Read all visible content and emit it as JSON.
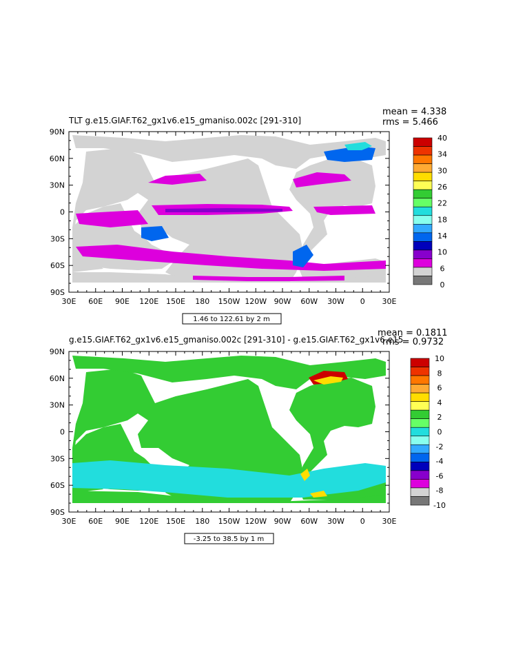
{
  "colors": {
    "land": "#ffffff",
    "ocean_gray": "#d3d3d3",
    "frame": "#000000"
  },
  "panels": [
    {
      "id": "top",
      "title": "TLT g.e15.GIAF.T62_gx1v6.e15_gmaniso.002c [291-310]",
      "mean_text": "mean = 4.338",
      "rms_text": "rms = 5.466",
      "range_text": "1.46 to 122.61 by 2 m",
      "y_ticks": [
        "90N",
        "60N",
        "30N",
        "0",
        "30S",
        "60S",
        "90S"
      ],
      "x_ticks": [
        "30E",
        "60E",
        "90E",
        "120E",
        "150E",
        "180",
        "150W",
        "120W",
        "90W",
        "60W",
        "30W",
        "0",
        "30E"
      ],
      "colorbar": {
        "labels": [
          "40",
          "34",
          "30",
          "26",
          "22",
          "18",
          "14",
          "10",
          "6",
          "0"
        ],
        "colors": [
          "#cc0000",
          "#ee3300",
          "#ff7700",
          "#ffaa33",
          "#ffdd00",
          "#ffff55",
          "#33cc33",
          "#66ff66",
          "#22dddd",
          "#88ffee",
          "#33aaff",
          "#0066ee",
          "#0000bb",
          "#8800cc",
          "#dd00dd",
          "#d3d3d3",
          "#777777"
        ]
      }
    },
    {
      "id": "bottom",
      "title": "g.e15.GIAF.T62_gx1v6.e15_gmaniso.002c [291-310] - g.e15.GIAF.T62_gx1v6.e15",
      "mean_text": "mean = 0.1811",
      "rms_text": "rms = 0.9732",
      "range_text": "-3.25 to 38.5 by 1 m",
      "y_ticks": [
        "90N",
        "60N",
        "30N",
        "0",
        "30S",
        "60S",
        "90S"
      ],
      "x_ticks": [
        "30E",
        "60E",
        "90E",
        "120E",
        "150E",
        "180",
        "150W",
        "120W",
        "90W",
        "60W",
        "30W",
        "0",
        "30E"
      ],
      "colorbar": {
        "labels": [
          "10",
          "8",
          "6",
          "4",
          "2",
          "0",
          "-2",
          "-4",
          "-6",
          "-8",
          "-10"
        ],
        "colors": [
          "#cc0000",
          "#ee3300",
          "#ff7700",
          "#ffaa33",
          "#ffdd00",
          "#ffff55",
          "#33cc33",
          "#66ff66",
          "#22dddd",
          "#88ffee",
          "#33aaff",
          "#0066ee",
          "#0000bb",
          "#8800cc",
          "#dd00dd",
          "#d3d3d3",
          "#777777"
        ]
      }
    }
  ]
}
